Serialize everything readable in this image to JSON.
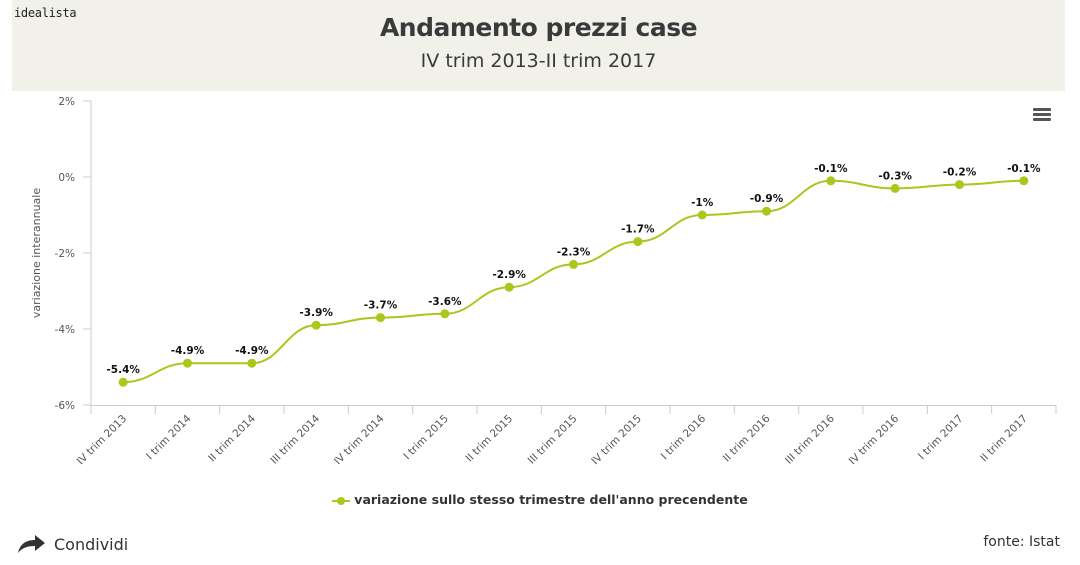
{
  "logo": "idealista",
  "menu_icon": "hamburger-menu-icon",
  "share": {
    "label": "Condividi",
    "icon": "share-arrow-icon"
  },
  "source": "fonte: Istat",
  "colors": {
    "series": "#a8c81c",
    "header_bg": "#f1f1ea",
    "axis": "#cccccc"
  },
  "chart_data": {
    "type": "line",
    "title": "Andamento prezzi case",
    "subtitle": "IV trim 2013-II trim 2017",
    "xlabel": "",
    "ylabel": "variazione interannuale",
    "ylim": [
      -6,
      2
    ],
    "yticks": [
      2,
      0,
      -2,
      -4,
      -6
    ],
    "ytick_labels": [
      "2%",
      "0%",
      "-2%",
      "-4%",
      "-6%"
    ],
    "grid": false,
    "legend_position": "bottom-center",
    "categories": [
      "IV trim 2013",
      "I trim 2014",
      "II trim 2014",
      "III trim 2014",
      "IV trim 2014",
      "I trim 2015",
      "II trim 2015",
      "III trim 2015",
      "IV trim 2015",
      "I trim 2016",
      "II trim 2016",
      "III trim 2016",
      "IV trim 2016",
      "I trim 2017",
      "II trim 2017"
    ],
    "series": [
      {
        "name": "variazione sullo stesso trimestre dell'anno precendente",
        "values": [
          -5.4,
          -4.9,
          -4.9,
          -3.9,
          -3.7,
          -3.6,
          -2.9,
          -2.3,
          -1.7,
          -1.0,
          -0.9,
          -0.1,
          -0.3,
          -0.2,
          -0.1
        ],
        "labels": [
          "-5.4%",
          "-4.9%",
          "-4.9%",
          "-3.9%",
          "-3.7%",
          "-3.6%",
          "-2.9%",
          "-2.3%",
          "-1.7%",
          "-1%",
          "-0.9%",
          "-0.1%",
          "-0.3%",
          "-0.2%",
          "-0.1%"
        ]
      }
    ]
  }
}
